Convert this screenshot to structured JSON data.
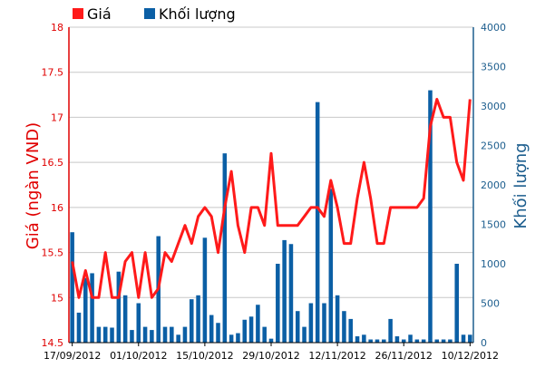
{
  "colors": {
    "price": "#ff1a1a",
    "volume": "#0b5fa5",
    "left_axis": "#e00000",
    "right_axis": "#1d5e8e",
    "grid": "#c8c8c8"
  },
  "chart_data": {
    "type": "bar+line",
    "legend": {
      "placement": "top-left",
      "items": [
        {
          "label": "Giá",
          "color": "#ff1a1a"
        },
        {
          "label": "Khối lượng",
          "color": "#0b5fa5"
        }
      ]
    },
    "ylabel_left": "Giá (ngàn VND)",
    "ylabel_right": "Khối lượng",
    "ylim_left": [
      14.5,
      18
    ],
    "yticks_left": [
      "14.5",
      "15",
      "15.5",
      "16",
      "16.5",
      "17",
      "17.5",
      "18"
    ],
    "ylim_right": [
      0,
      4000
    ],
    "yticks_right": [
      "0",
      "500",
      "1000",
      "1500",
      "2000",
      "2500",
      "3000",
      "3500",
      "4000"
    ],
    "xtick_labels": [
      "17/09/2012",
      "01/10/2012",
      "15/10/2012",
      "29/10/2012",
      "12/11/2012",
      "26/11/2012",
      "10/12/2012"
    ],
    "xtick_indices": [
      0,
      10,
      20,
      30,
      40,
      50,
      60
    ],
    "grid": "horizontal",
    "price": [
      15.4,
      15.0,
      15.3,
      15.0,
      15.0,
      15.5,
      15.0,
      15.0,
      15.4,
      15.5,
      15.0,
      15.5,
      15.0,
      15.1,
      15.5,
      15.4,
      15.6,
      15.8,
      15.6,
      15.9,
      16.0,
      15.9,
      15.5,
      16.0,
      16.4,
      15.8,
      15.5,
      16.0,
      16.0,
      15.8,
      16.6,
      15.8,
      15.8,
      15.8,
      15.8,
      15.9,
      16.0,
      16.0,
      15.9,
      16.3,
      16.0,
      15.6,
      15.6,
      16.1,
      16.5,
      16.1,
      15.6,
      15.6,
      16.0,
      16.0,
      16.0,
      16.0,
      16.0,
      16.1,
      16.9,
      17.2,
      17.0,
      17.0,
      16.5,
      16.3,
      17.2
    ],
    "volume": [
      1400,
      380,
      820,
      880,
      200,
      200,
      190,
      900,
      600,
      160,
      500,
      200,
      160,
      1350,
      200,
      200,
      100,
      200,
      550,
      600,
      1330,
      350,
      250,
      2400,
      100,
      120,
      290,
      330,
      480,
      200,
      50,
      1000,
      1300,
      1250,
      400,
      200,
      500,
      3050,
      500,
      1950,
      600,
      400,
      300,
      80,
      100,
      40,
      40,
      40,
      300,
      80,
      40,
      100,
      40,
      40,
      3200,
      40,
      40,
      40,
      1000,
      100,
      100
    ]
  }
}
